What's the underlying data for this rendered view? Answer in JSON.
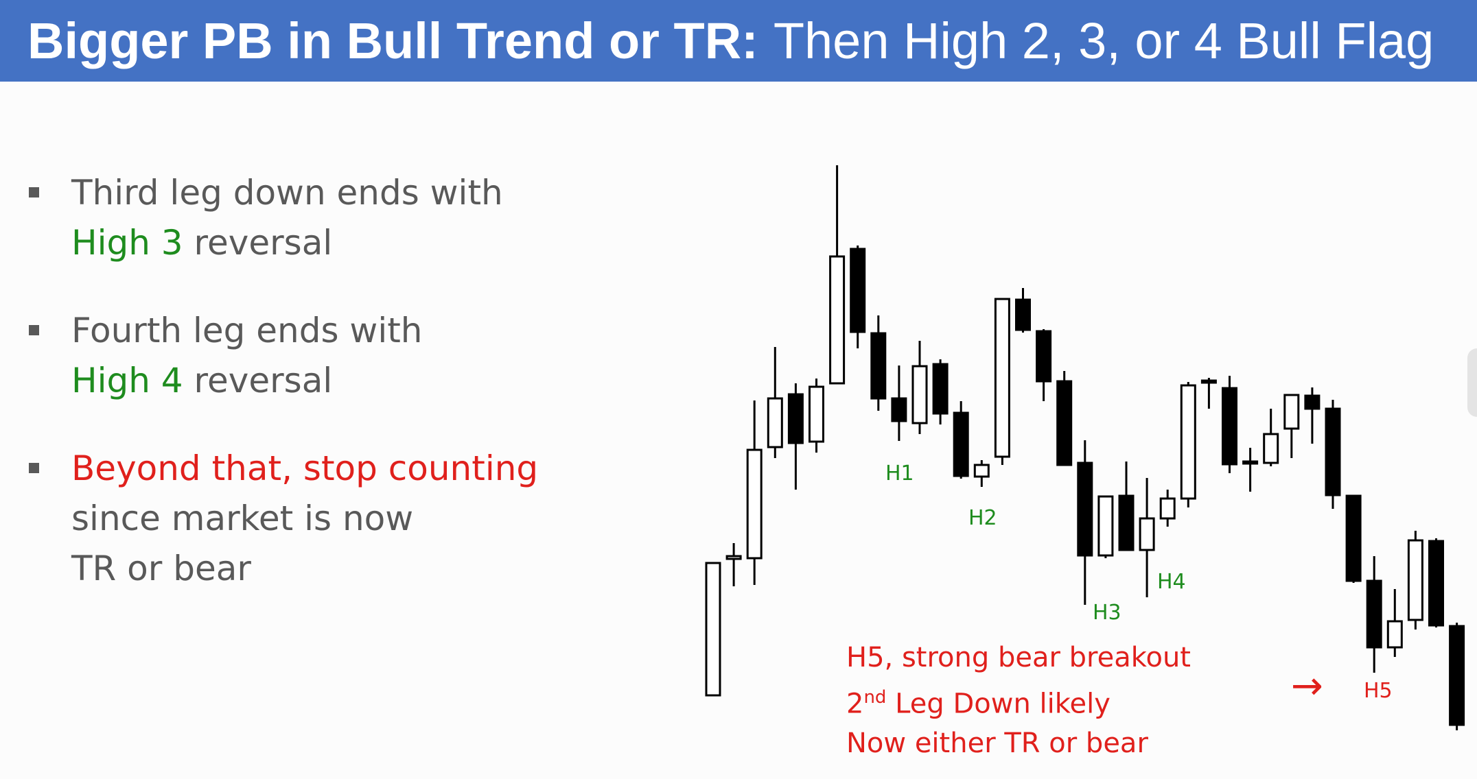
{
  "title": {
    "bold": "Bigger PB in Bull Trend or TR:",
    "normal": "Then High 2, 3, or 4 Bull Flag"
  },
  "bullets": [
    {
      "gray": "Third leg down ends with",
      "green": "High 3",
      "tail": "reversal"
    },
    {
      "gray": "Fourth leg ends with",
      "green": "High 4",
      "tail": "reversal"
    },
    {
      "red": "Beyond that, stop counting",
      "gray1": "since market is now",
      "gray2": "TR or bear"
    }
  ],
  "chart_labels": {
    "h1": "H1",
    "h2": "H2",
    "h3": "H3",
    "h4": "H4",
    "h5": "H5",
    "arrow": "→"
  },
  "note": {
    "line1": "H5, strong bear breakout",
    "line2_num": "2",
    "line2_sup": "nd",
    "line2_rest": " Leg Down likely",
    "line3": "Now either TR or bear"
  },
  "colors": {
    "header": "#4472c4",
    "green": "#1e8c1e",
    "red": "#e0201c",
    "gray_text": "#595959"
  },
  "chart_data": {
    "type": "candlestick",
    "bars": [
      {
        "o": 0,
        "h": 193,
        "l": 0,
        "c": 193
      },
      {
        "o": 199,
        "h": 222,
        "l": 159,
        "c": 203
      },
      {
        "o": 200,
        "h": 430,
        "l": 161,
        "c": 358
      },
      {
        "o": 362,
        "h": 508,
        "l": 346,
        "c": 433
      },
      {
        "o": 439,
        "h": 455,
        "l": 300,
        "c": 368
      },
      {
        "o": 370,
        "h": 462,
        "l": 354,
        "c": 450
      },
      {
        "o": 455,
        "h": 773,
        "l": 455,
        "c": 640
      },
      {
        "o": 651,
        "h": 656,
        "l": 506,
        "c": 530
      },
      {
        "o": 528,
        "h": 554,
        "l": 415,
        "c": 433
      },
      {
        "o": 433,
        "h": 481,
        "l": 371,
        "c": 400
      },
      {
        "o": 397,
        "h": 517,
        "l": 381,
        "c": 480
      },
      {
        "o": 483,
        "h": 490,
        "l": 395,
        "c": 411
      },
      {
        "o": 412,
        "h": 429,
        "l": 316,
        "c": 320
      },
      {
        "o": 319,
        "h": 343,
        "l": 304,
        "c": 336
      },
      {
        "o": 348,
        "h": 578,
        "l": 336,
        "c": 578
      },
      {
        "o": 577,
        "h": 594,
        "l": 529,
        "c": 533
      },
      {
        "o": 531,
        "h": 534,
        "l": 429,
        "c": 458
      },
      {
        "o": 458,
        "h": 473,
        "l": 336,
        "c": 336
      },
      {
        "o": 339,
        "h": 372,
        "l": 132,
        "c": 204
      },
      {
        "o": 204,
        "h": 288,
        "l": 200,
        "c": 290
      },
      {
        "o": 291,
        "h": 341,
        "l": 217,
        "c": 212
      },
      {
        "o": 212,
        "h": 317,
        "l": 143,
        "c": 258
      },
      {
        "o": 258,
        "h": 300,
        "l": 246,
        "c": 287
      },
      {
        "o": 287,
        "h": 457,
        "l": 274,
        "c": 452
      },
      {
        "o": 457,
        "h": 463,
        "l": 418,
        "c": 459
      },
      {
        "o": 448,
        "h": 466,
        "l": 324,
        "c": 337
      },
      {
        "o": 340,
        "h": 361,
        "l": 297,
        "c": 341
      },
      {
        "o": 339,
        "h": 418,
        "l": 334,
        "c": 381
      },
      {
        "o": 389,
        "h": 436,
        "l": 346,
        "c": 438
      },
      {
        "o": 437,
        "h": 449,
        "l": 367,
        "c": 418
      },
      {
        "o": 418,
        "h": 431,
        "l": 272,
        "c": 292
      },
      {
        "o": 291,
        "h": 292,
        "l": 164,
        "c": 167
      },
      {
        "o": 167,
        "h": 203,
        "l": 33,
        "c": 70
      },
      {
        "o": 70,
        "h": 155,
        "l": 56,
        "c": 108
      },
      {
        "o": 110,
        "h": 240,
        "l": 96,
        "c": 226
      },
      {
        "o": 225,
        "h": 229,
        "l": 99,
        "c": 102
      },
      {
        "o": 101,
        "h": 106,
        "l": -51,
        "c": -43
      }
    ]
  }
}
